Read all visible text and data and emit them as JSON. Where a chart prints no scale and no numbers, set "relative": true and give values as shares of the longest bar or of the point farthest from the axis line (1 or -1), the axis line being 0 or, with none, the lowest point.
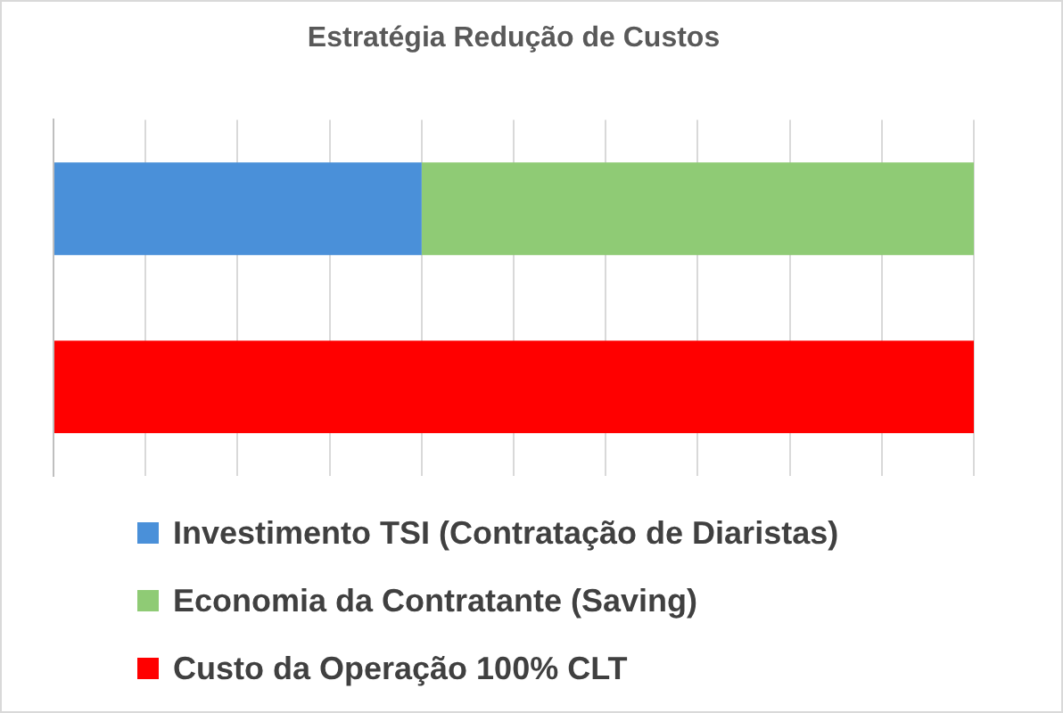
{
  "chart_data": {
    "type": "bar",
    "title": "Estratégia Redução de Custos",
    "orientation": "horizontal",
    "stacked": true,
    "relative": true,
    "grid": "x",
    "legend": "bottom",
    "categories": [
      null,
      null
    ],
    "series": [
      {
        "name": "Investimento TSI (Contratação de Diaristas)",
        "color": "#4a90d9",
        "values": [
          0.4,
          null
        ]
      },
      {
        "name": "Economia da Contratante (Saving)",
        "color": "#8fcb75",
        "values": [
          0.6,
          null
        ]
      },
      {
        "name": "Custo da Operação 100% CLT",
        "color": "#ff0000",
        "values": [
          null,
          1
        ]
      }
    ]
  }
}
